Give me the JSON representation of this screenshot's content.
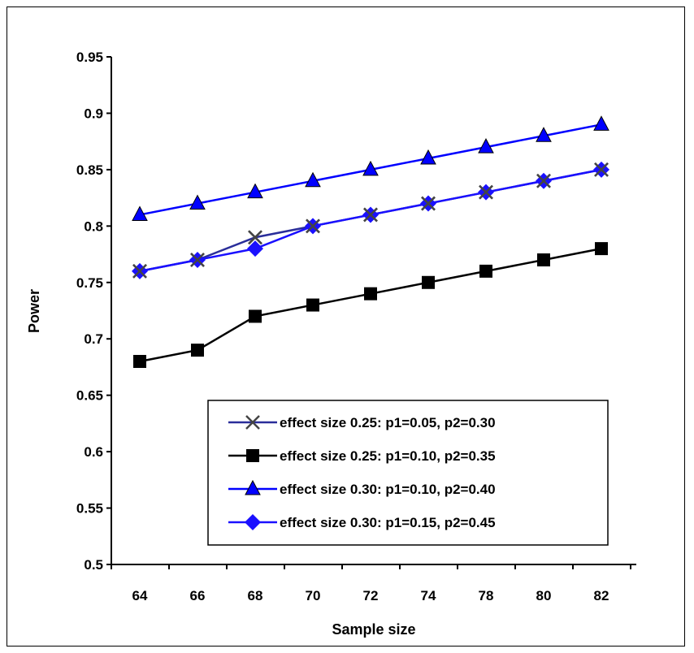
{
  "chart_data": {
    "type": "line",
    "title": "",
    "xlabel": "Sample size",
    "ylabel": "Power",
    "categories": [
      "64",
      "66",
      "68",
      "70",
      "72",
      "74",
      "78",
      "80",
      "82"
    ],
    "ylim": [
      0.5,
      0.95
    ],
    "yticks": [
      "0.5",
      "0.55",
      "0.6",
      "0.65",
      "0.7",
      "0.75",
      "0.8",
      "0.85",
      "0.9",
      "0.95"
    ],
    "grid": false,
    "legend_position": "bottom-right",
    "series": [
      {
        "name": "effect size 0.25: p1=0.05, p2=0.30",
        "marker": "x",
        "color": "#2a2e9a",
        "values": [
          0.76,
          0.77,
          0.79,
          0.8,
          0.81,
          0.82,
          0.83,
          0.84,
          0.85
        ]
      },
      {
        "name": "effect size 0.25: p1=0.10, p2=0.35",
        "marker": "square",
        "color": "#000000",
        "values": [
          0.68,
          0.69,
          0.72,
          0.73,
          0.74,
          0.75,
          0.76,
          0.77,
          0.78
        ]
      },
      {
        "name": "effect size 0.30: p1=0.10, p2=0.40",
        "marker": "triangle",
        "color": "#0000ff",
        "values": [
          0.81,
          0.82,
          0.83,
          0.84,
          0.85,
          0.86,
          0.87,
          0.88,
          0.89
        ]
      },
      {
        "name": "effect size 0.30: p1=0.15, p2=0.45",
        "marker": "diamond",
        "color": "#1a10ff",
        "values": [
          0.76,
          0.77,
          0.78,
          0.8,
          0.81,
          0.82,
          0.83,
          0.84,
          0.85
        ]
      }
    ]
  }
}
